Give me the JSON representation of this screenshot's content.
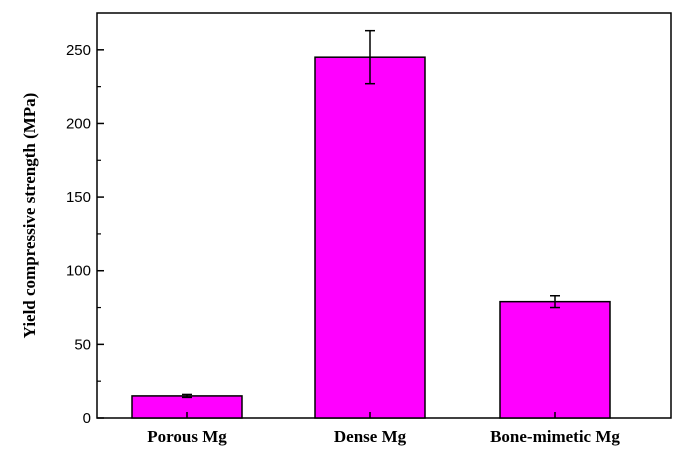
{
  "chart_data": {
    "type": "bar",
    "title": "",
    "xlabel": "",
    "ylabel": "Yield compressive strength (MPa)",
    "categories": [
      "Porous Mg",
      "Dense Mg",
      "Bone-mimetic Mg"
    ],
    "values": [
      15,
      245,
      79
    ],
    "errors": [
      1,
      18,
      4
    ],
    "ylim": [
      0,
      275
    ],
    "yticks": [
      0,
      50,
      100,
      150,
      200,
      250
    ],
    "grid": false,
    "legend": "none",
    "colors": {
      "bar_fill": "#ff00ff",
      "bar_stroke": "#000000",
      "axis": "#000000"
    }
  }
}
